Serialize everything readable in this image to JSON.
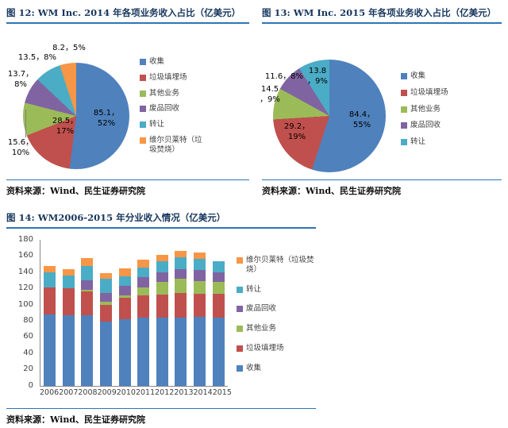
{
  "palette": {
    "collection_blue": "#4F81BD",
    "landfill_red": "#C0504D",
    "other_green": "#9BBB59",
    "recycling_purple": "#8064A2",
    "transfer_teal": "#4BACC6",
    "wheelabrator_orange": "#F79646",
    "title_navy": "#17365D",
    "rule_blue": "#2E75B6"
  },
  "chart_data": [
    {
      "type": "pie",
      "title": "图 12: WM Inc. 2014 年各项业务收入占比（亿美元）",
      "labels": [
        "收集",
        "垃圾填埋场",
        "其他业务",
        "废品回收",
        "转让",
        "维尔贝莱特（垃圾焚烧）"
      ],
      "values": [
        85.1,
        28.5,
        15.6,
        13.7,
        13.5,
        8.2
      ],
      "percents": [
        52,
        17,
        10,
        8,
        8,
        5
      ],
      "colors": [
        "#4F81BD",
        "#C0504D",
        "#9BBB59",
        "#8064A2",
        "#4BACC6",
        "#F79646"
      ],
      "point_labels": [
        "85.1，\n52%",
        "28.5，\n17%",
        "15.6，\n10%",
        "13.7，\n8%",
        "13.5，8%",
        "8.2，5%"
      ],
      "legend_position": "right",
      "grid": false,
      "source": "资料来源：Wind、民生证券研究院"
    },
    {
      "type": "pie",
      "title": "图 13: WM Inc. 2015 年各项业务收入占比（亿美元）",
      "labels": [
        "收集",
        "垃圾填埋场",
        "其他业务",
        "废品回收",
        "转让"
      ],
      "values": [
        84.4,
        29.2,
        14.5,
        11.6,
        13.8
      ],
      "percents": [
        55,
        19,
        9,
        8,
        9
      ],
      "colors": [
        "#4F81BD",
        "#C0504D",
        "#9BBB59",
        "#8064A2",
        "#4BACC6"
      ],
      "point_labels": [
        "84.4，\n55%",
        "29.2，\n19%",
        "14.5\n，9%",
        "11.6，8%",
        "13.8\n，9%"
      ],
      "legend_position": "right",
      "grid": false,
      "source": "资料来源：Wind、民生证券研究院"
    },
    {
      "type": "bar",
      "stacked": true,
      "title": "图 14: WM2006-2015 年分业收入情况（亿美元）",
      "categories": [
        "2006",
        "2007",
        "2008",
        "2009",
        "2010",
        "2011",
        "2012",
        "2013",
        "2014",
        "2015"
      ],
      "series": [
        {
          "name": "收集",
          "color": "#4F81BD",
          "values": [
            88,
            87,
            87,
            79,
            82,
            84,
            84,
            84,
            85.1,
            84.4
          ]
        },
        {
          "name": "垃圾填埋场",
          "color": "#C0504D",
          "values": [
            33,
            33,
            29,
            21,
            26,
            27,
            28,
            30,
            28.5,
            29.2
          ]
        },
        {
          "name": "其他业务",
          "color": "#9BBB59",
          "values": [
            0,
            0,
            2,
            3,
            3,
            10,
            16,
            18,
            15.6,
            14.5
          ]
        },
        {
          "name": "废品回收",
          "color": "#8064A2",
          "values": [
            0,
            0,
            12,
            11,
            12,
            13,
            12,
            12,
            13.7,
            11.6
          ]
        },
        {
          "name": "转让",
          "color": "#4BACC6",
          "values": [
            19,
            16,
            18,
            18,
            12,
            12,
            13,
            14,
            13.5,
            13.8
          ]
        },
        {
          "name": "维尔贝莱特（垃圾焚烧）",
          "color": "#F79646",
          "values": [
            8,
            8,
            9,
            7,
            10,
            9,
            8,
            8,
            8.2,
            0
          ]
        }
      ],
      "ylim": [
        0,
        180
      ],
      "ytick": 20,
      "grid": false,
      "legend_position": "right",
      "source": "资料来源：Wind、民生证券研究院"
    }
  ]
}
